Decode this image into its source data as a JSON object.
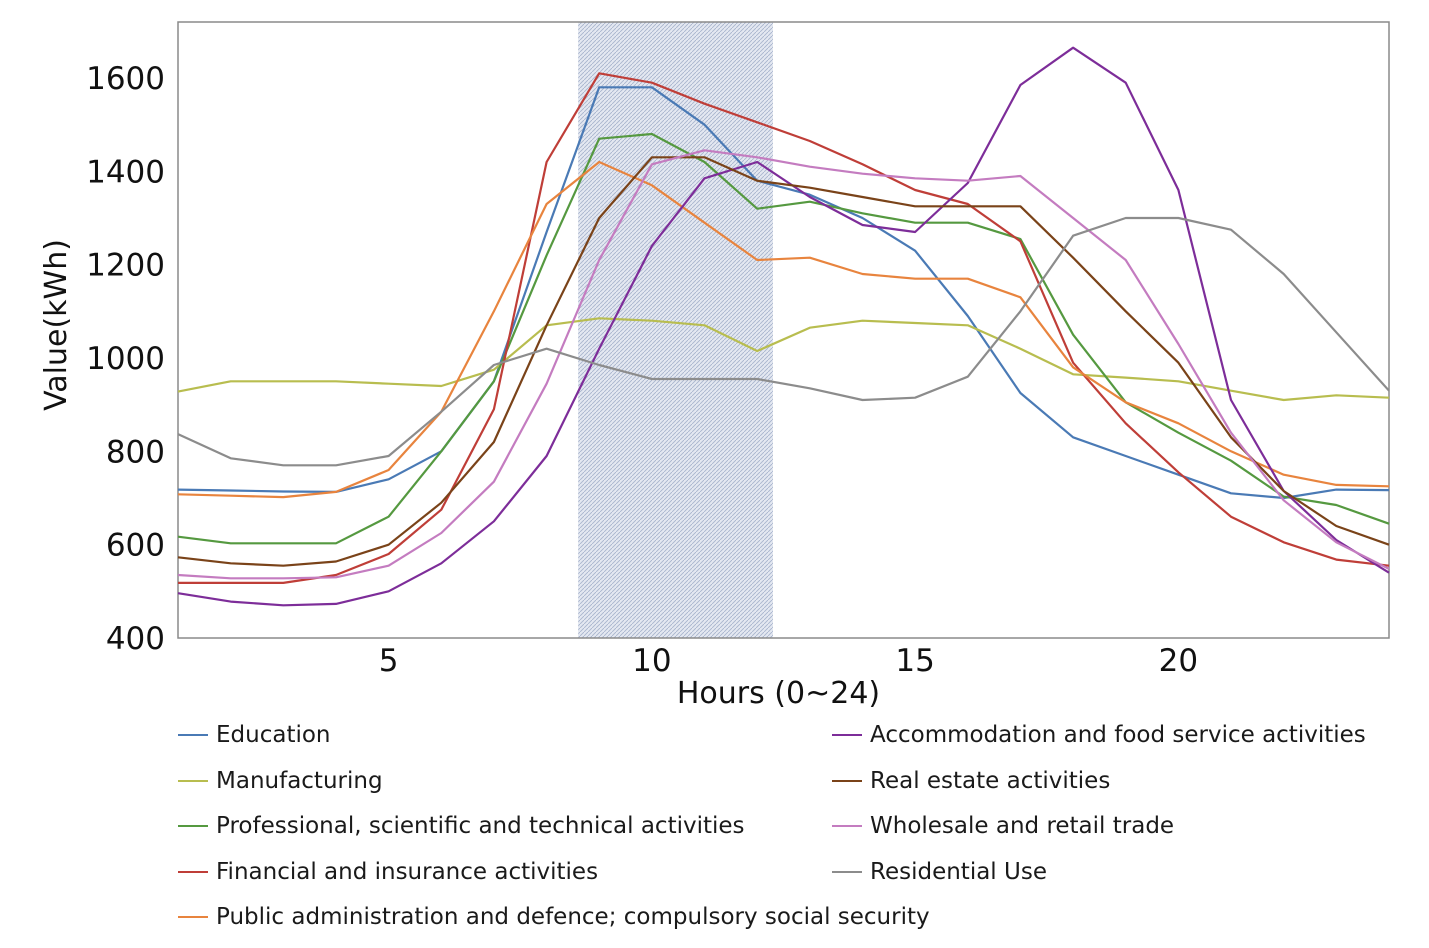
{
  "chart_data": {
    "type": "line",
    "title": "",
    "xlabel": "Hours (0~24)",
    "ylabel": "Value(kWh)",
    "xlim": [
      1,
      24
    ],
    "ylim": [
      400,
      1720
    ],
    "xticks": [
      5,
      10,
      15,
      20
    ],
    "yticks": [
      400,
      600,
      800,
      1000,
      1200,
      1400,
      1600
    ],
    "highlight_range": [
      8.6,
      12.3
    ],
    "x": [
      1,
      2,
      3,
      4,
      5,
      6,
      7,
      8,
      9,
      10,
      11,
      12,
      13,
      14,
      15,
      16,
      17,
      18,
      19,
      20,
      21,
      22,
      23,
      24
    ],
    "series": [
      {
        "name": "Education",
        "color": "#4a7ab5",
        "values": [
          718,
          716,
          714,
          713,
          740,
          800,
          950,
          1270,
          1580,
          1580,
          1500,
          1380,
          1350,
          1300,
          1230,
          1090,
          925,
          830,
          790,
          750,
          710,
          700,
          718,
          717
        ]
      },
      {
        "name": "Manufacturing",
        "color": "#b8bd4f",
        "values": [
          928,
          950,
          950,
          950,
          945,
          940,
          975,
          1070,
          1085,
          1080,
          1070,
          1015,
          1065,
          1080,
          1075,
          1070,
          1020,
          965,
          958,
          950,
          930,
          910,
          920,
          915
        ]
      },
      {
        "name": "Professional, scientific and technical activities",
        "color": "#559940",
        "values": [
          617,
          603,
          603,
          603,
          660,
          800,
          950,
          1220,
          1470,
          1480,
          1420,
          1320,
          1335,
          1310,
          1290,
          1290,
          1255,
          1050,
          905,
          840,
          780,
          703,
          685,
          645
        ]
      },
      {
        "name": "Financial and insurance activities",
        "color": "#bf3e38",
        "values": [
          518,
          518,
          518,
          535,
          580,
          675,
          890,
          1420,
          1610,
          1590,
          1545,
          1505,
          1465,
          1415,
          1360,
          1330,
          1250,
          990,
          860,
          755,
          660,
          605,
          568,
          555
        ]
      },
      {
        "name": "Public administration and defence; compulsory social security",
        "color": "#e8843e",
        "values": [
          708,
          705,
          702,
          713,
          760,
          885,
          1100,
          1330,
          1420,
          1370,
          1290,
          1210,
          1215,
          1180,
          1170,
          1170,
          1130,
          980,
          905,
          860,
          800,
          750,
          728,
          725
        ]
      },
      {
        "name": "Accommodation and food service activities",
        "color": "#7d2d99",
        "values": [
          496,
          478,
          470,
          473,
          500,
          560,
          650,
          790,
          1020,
          1240,
          1385,
          1420,
          1345,
          1285,
          1270,
          1375,
          1585,
          1665,
          1590,
          1360,
          910,
          715,
          610,
          540
        ]
      },
      {
        "name": "Real estate activities",
        "color": "#7a4319",
        "values": [
          573,
          560,
          555,
          564,
          600,
          690,
          820,
          1070,
          1300,
          1430,
          1430,
          1380,
          1365,
          1345,
          1325,
          1325,
          1325,
          1215,
          1100,
          990,
          830,
          715,
          640,
          600
        ]
      },
      {
        "name": "Wholesale and retail trade",
        "color": "#c47cc0",
        "values": [
          535,
          528,
          528,
          530,
          555,
          625,
          735,
          945,
          1210,
          1415,
          1445,
          1430,
          1410,
          1395,
          1385,
          1380,
          1390,
          1300,
          1210,
          1030,
          840,
          695,
          605,
          548
        ]
      },
      {
        "name": "Residential Use",
        "color": "#8c8c8c",
        "values": [
          837,
          785,
          770,
          770,
          790,
          885,
          985,
          1020,
          985,
          955,
          955,
          955,
          935,
          910,
          915,
          960,
          1100,
          1262,
          1300,
          1300,
          1275,
          1180,
          1055,
          930
        ]
      }
    ]
  },
  "legend_order": [
    0,
    5,
    1,
    6,
    2,
    7,
    3,
    8,
    4
  ]
}
